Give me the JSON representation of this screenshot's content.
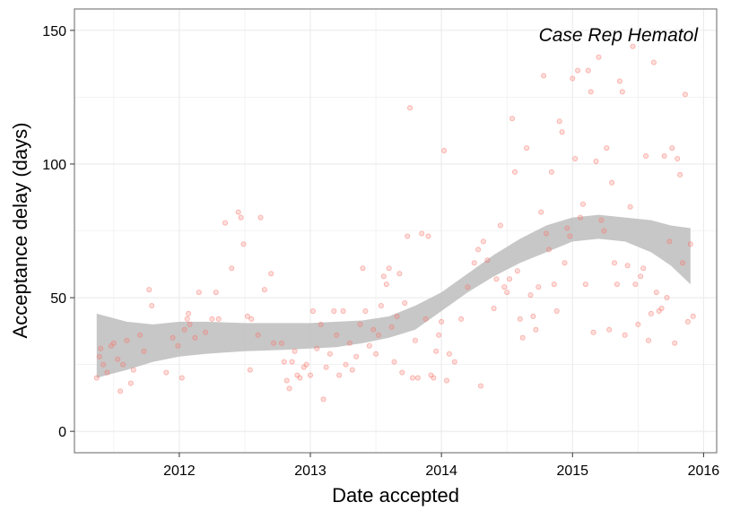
{
  "chart_data": {
    "type": "scatter",
    "annotation": "Case Rep Hematol",
    "xlabel": "Date accepted",
    "ylabel": "Acceptance delay (days)",
    "x_ticks": [
      2012,
      2013,
      2014,
      2015,
      2016
    ],
    "y_ticks": [
      0,
      50,
      100,
      150
    ],
    "xlim": [
      2011.2,
      2016.1
    ],
    "ylim": [
      -8,
      158
    ],
    "grid": true,
    "legend": "none",
    "colors": {
      "points": "#f8766d",
      "ribbon": "#bdbdbd",
      "grid": "#ebebeb",
      "border": "#7f7f7f"
    },
    "points": [
      [
        2011.37,
        20
      ],
      [
        2011.39,
        28
      ],
      [
        2011.4,
        31
      ],
      [
        2011.42,
        25
      ],
      [
        2011.45,
        22
      ],
      [
        2011.48,
        32
      ],
      [
        2011.5,
        33
      ],
      [
        2011.53,
        27
      ],
      [
        2011.55,
        15
      ],
      [
        2011.57,
        25
      ],
      [
        2011.6,
        34
      ],
      [
        2011.63,
        18
      ],
      [
        2011.65,
        23
      ],
      [
        2011.7,
        36
      ],
      [
        2011.73,
        30
      ],
      [
        2011.77,
        53
      ],
      [
        2011.79,
        47
      ],
      [
        2011.9,
        22
      ],
      [
        2011.95,
        35
      ],
      [
        2011.99,
        32
      ],
      [
        2012.02,
        20
      ],
      [
        2012.04,
        38
      ],
      [
        2012.06,
        42
      ],
      [
        2012.07,
        44
      ],
      [
        2012.08,
        40
      ],
      [
        2012.12,
        35
      ],
      [
        2012.15,
        52
      ],
      [
        2012.2,
        37
      ],
      [
        2012.25,
        42
      ],
      [
        2012.28,
        52
      ],
      [
        2012.3,
        42
      ],
      [
        2012.35,
        78
      ],
      [
        2012.4,
        61
      ],
      [
        2012.45,
        82
      ],
      [
        2012.47,
        80
      ],
      [
        2012.49,
        70
      ],
      [
        2012.52,
        43
      ],
      [
        2012.54,
        23
      ],
      [
        2012.55,
        42
      ],
      [
        2012.6,
        36
      ],
      [
        2012.62,
        80
      ],
      [
        2012.65,
        53
      ],
      [
        2012.7,
        59
      ],
      [
        2012.72,
        33
      ],
      [
        2012.78,
        33
      ],
      [
        2012.8,
        26
      ],
      [
        2012.82,
        19
      ],
      [
        2012.84,
        16
      ],
      [
        2012.86,
        26
      ],
      [
        2012.88,
        30
      ],
      [
        2012.9,
        21
      ],
      [
        2012.92,
        20
      ],
      [
        2012.95,
        24
      ],
      [
        2012.97,
        25
      ],
      [
        2013.0,
        21
      ],
      [
        2013.02,
        45
      ],
      [
        2013.05,
        31
      ],
      [
        2013.08,
        40
      ],
      [
        2013.1,
        12
      ],
      [
        2013.12,
        24
      ],
      [
        2013.15,
        29
      ],
      [
        2013.18,
        45
      ],
      [
        2013.2,
        36
      ],
      [
        2013.22,
        21
      ],
      [
        2013.25,
        45
      ],
      [
        2013.27,
        25
      ],
      [
        2013.3,
        33
      ],
      [
        2013.32,
        23
      ],
      [
        2013.35,
        28
      ],
      [
        2013.38,
        40
      ],
      [
        2013.4,
        61
      ],
      [
        2013.42,
        45
      ],
      [
        2013.45,
        32
      ],
      [
        2013.48,
        38
      ],
      [
        2013.5,
        29
      ],
      [
        2013.52,
        36
      ],
      [
        2013.54,
        47
      ],
      [
        2013.56,
        58
      ],
      [
        2013.58,
        55
      ],
      [
        2013.6,
        61
      ],
      [
        2013.62,
        39
      ],
      [
        2013.64,
        26
      ],
      [
        2013.66,
        43
      ],
      [
        2013.68,
        59
      ],
      [
        2013.7,
        22
      ],
      [
        2013.72,
        48
      ],
      [
        2013.74,
        73
      ],
      [
        2013.76,
        121
      ],
      [
        2013.78,
        20
      ],
      [
        2013.8,
        34
      ],
      [
        2013.82,
        20
      ],
      [
        2013.85,
        74
      ],
      [
        2013.88,
        42
      ],
      [
        2013.9,
        73
      ],
      [
        2013.92,
        21
      ],
      [
        2013.94,
        20
      ],
      [
        2013.96,
        30
      ],
      [
        2013.98,
        36
      ],
      [
        2014.0,
        41
      ],
      [
        2014.02,
        105
      ],
      [
        2014.04,
        19
      ],
      [
        2014.06,
        29
      ],
      [
        2014.1,
        26
      ],
      [
        2014.15,
        42
      ],
      [
        2014.2,
        54
      ],
      [
        2014.25,
        63
      ],
      [
        2014.28,
        68
      ],
      [
        2014.3,
        17
      ],
      [
        2014.32,
        71
      ],
      [
        2014.35,
        64
      ],
      [
        2014.4,
        46
      ],
      [
        2014.42,
        57
      ],
      [
        2014.45,
        77
      ],
      [
        2014.48,
        54
      ],
      [
        2014.5,
        52
      ],
      [
        2014.52,
        57
      ],
      [
        2014.54,
        117
      ],
      [
        2014.56,
        97
      ],
      [
        2014.58,
        60
      ],
      [
        2014.6,
        42
      ],
      [
        2014.62,
        35
      ],
      [
        2014.65,
        106
      ],
      [
        2014.68,
        51
      ],
      [
        2014.7,
        43
      ],
      [
        2014.72,
        38
      ],
      [
        2014.74,
        54
      ],
      [
        2014.76,
        82
      ],
      [
        2014.78,
        133
      ],
      [
        2014.8,
        74
      ],
      [
        2014.82,
        68
      ],
      [
        2014.84,
        97
      ],
      [
        2014.86,
        55
      ],
      [
        2014.88,
        45
      ],
      [
        2014.9,
        116
      ],
      [
        2014.92,
        112
      ],
      [
        2014.94,
        63
      ],
      [
        2014.96,
        76
      ],
      [
        2014.98,
        73
      ],
      [
        2015.0,
        132
      ],
      [
        2015.02,
        102
      ],
      [
        2015.04,
        135
      ],
      [
        2015.06,
        80
      ],
      [
        2015.08,
        85
      ],
      [
        2015.1,
        55
      ],
      [
        2015.12,
        135
      ],
      [
        2015.14,
        127
      ],
      [
        2015.16,
        37
      ],
      [
        2015.18,
        101
      ],
      [
        2015.2,
        140
      ],
      [
        2015.22,
        79
      ],
      [
        2015.24,
        75
      ],
      [
        2015.26,
        106
      ],
      [
        2015.28,
        38
      ],
      [
        2015.3,
        93
      ],
      [
        2015.32,
        63
      ],
      [
        2015.34,
        55
      ],
      [
        2015.36,
        131
      ],
      [
        2015.38,
        127
      ],
      [
        2015.4,
        36
      ],
      [
        2015.42,
        62
      ],
      [
        2015.44,
        84
      ],
      [
        2015.46,
        144
      ],
      [
        2015.48,
        55
      ],
      [
        2015.5,
        40
      ],
      [
        2015.52,
        58
      ],
      [
        2015.54,
        61
      ],
      [
        2015.56,
        103
      ],
      [
        2015.58,
        34
      ],
      [
        2015.6,
        44
      ],
      [
        2015.62,
        138
      ],
      [
        2015.64,
        52
      ],
      [
        2015.66,
        45
      ],
      [
        2015.68,
        46
      ],
      [
        2015.7,
        103
      ],
      [
        2015.72,
        50
      ],
      [
        2015.74,
        71
      ],
      [
        2015.76,
        106
      ],
      [
        2015.78,
        33
      ],
      [
        2015.8,
        102
      ],
      [
        2015.82,
        96
      ],
      [
        2015.84,
        63
      ],
      [
        2015.86,
        126
      ],
      [
        2015.88,
        41
      ],
      [
        2015.9,
        70
      ],
      [
        2015.92,
        43
      ]
    ],
    "smooth": {
      "x": [
        2011.37,
        2011.6,
        2011.8,
        2012.0,
        2012.2,
        2012.5,
        2012.8,
        2013.0,
        2013.2,
        2013.4,
        2013.6,
        2013.8,
        2014.0,
        2014.2,
        2014.4,
        2014.6,
        2014.8,
        2015.0,
        2015.2,
        2015.4,
        2015.6,
        2015.75,
        2015.9
      ],
      "lower": [
        20,
        23,
        26,
        28,
        29,
        30,
        30.5,
        31,
        31.5,
        33,
        35,
        38,
        45,
        52,
        58,
        63,
        67,
        71,
        72,
        71,
        67,
        62,
        55
      ],
      "upper": [
        44,
        41,
        40,
        41,
        41,
        40.5,
        40.5,
        40.5,
        41,
        41.5,
        43,
        47,
        52,
        59,
        66,
        72,
        77,
        80,
        81,
        80,
        79,
        77,
        76
      ]
    }
  }
}
